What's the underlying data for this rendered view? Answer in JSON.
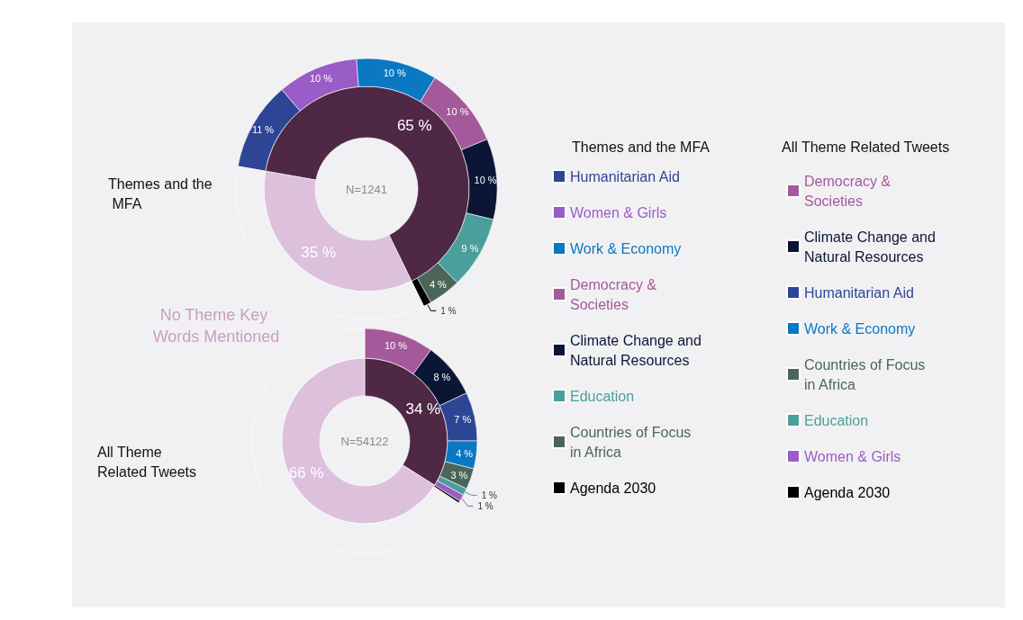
{
  "chart_data": [
    {
      "type": "donut",
      "title": "Themes and the MFA",
      "annotations": [
        "N=1241",
        "No Theme Key Words Mentioned"
      ],
      "categories": [
        null,
        null
      ],
      "values": [
        65,
        35
      ],
      "colors": [
        "#4f2845",
        "#dcc0dc"
      ],
      "value_labels": [
        "65 %",
        "35 %"
      ]
    },
    {
      "type": "donut",
      "legend_title": "Themes and the MFA",
      "legend": "right",
      "categories": [
        "Humanitarian Aid",
        "Women & Girls",
        "Work & Economy",
        "Democracy & Societies",
        "Climate Change and Natural Resources",
        "Education",
        "Countries of Focus in Africa",
        "Agenda 2030",
        null
      ],
      "values": [
        11,
        10,
        10,
        10,
        10,
        9,
        4,
        1,
        35
      ],
      "colors": [
        "#2e4596",
        "#9a5cc6",
        "#0a78c2",
        "#a4599b",
        "#0b1535",
        "#4a9e9c",
        "#4b6659",
        "#000000",
        "#f1f1f3"
      ],
      "value_labels": [
        "11 %",
        "10 %",
        "10 %",
        "10 %",
        "10 %",
        "9 %",
        "4 %",
        "1 %",
        null
      ]
    },
    {
      "type": "donut",
      "title": "All Theme Related Tweets",
      "annotations": [
        "N=54122"
      ],
      "categories": [
        null,
        null
      ],
      "values": [
        34,
        66
      ],
      "colors": [
        "#4f2845",
        "#dcc0dc"
      ],
      "value_labels": [
        "34 %",
        "66 %"
      ]
    },
    {
      "type": "donut",
      "legend_title": "All Theme Related Tweets",
      "legend": "right",
      "categories": [
        "Democracy & Societies",
        "Climate Change and Natural Resources",
        "Humanitarian Aid",
        "Work & Economy",
        "Countries of Focus in Africa",
        "Education",
        "Women & Girls",
        "Agenda 2030",
        null
      ],
      "values": [
        10,
        8,
        7,
        4,
        3,
        1,
        1,
        0.3,
        65.7
      ],
      "colors": [
        "#a4599b",
        "#0b1535",
        "#2e4596",
        "#0a78c2",
        "#4b6659",
        "#4a9e9c",
        "#9a5cc6",
        "#000000",
        "#f1f1f3"
      ],
      "value_labels": [
        "10 %",
        "8 %",
        "7 %",
        "4 %",
        "3 %",
        "1 %",
        "1 %",
        null,
        null
      ]
    }
  ]
}
